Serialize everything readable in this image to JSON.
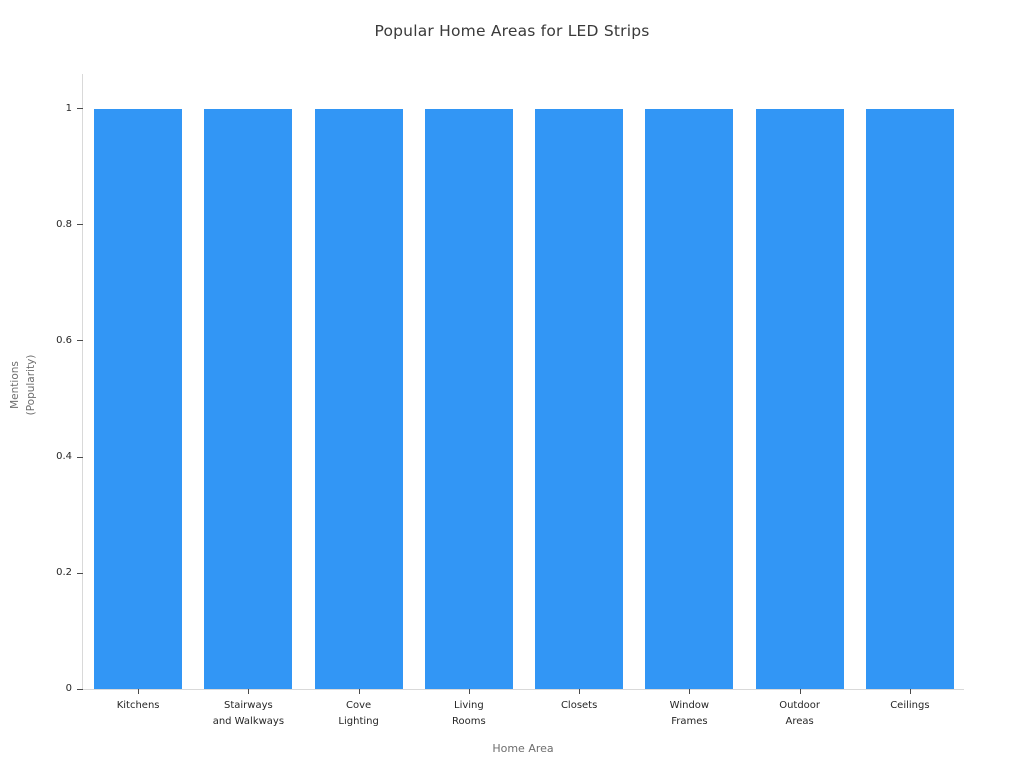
{
  "chart_data": {
    "type": "bar",
    "title": "Popular Home Areas for LED Strips",
    "xlabel": "Home Area",
    "ylabel": "Mentions\n(Popularity)",
    "categories": [
      "Kitchens",
      "Stairways\nand Walkways",
      "Cove\nLighting",
      "Living\nRooms",
      "Closets",
      "Window\nFrames",
      "Outdoor\nAreas",
      "Ceilings"
    ],
    "values": [
      1,
      1,
      1,
      1,
      1,
      1,
      1,
      1
    ],
    "yticks": [
      0,
      0.2,
      0.4,
      0.6,
      0.8,
      1
    ],
    "ytick_labels": [
      "0",
      "0.2",
      "0.4",
      "0.6",
      "0.8",
      "1"
    ],
    "ylim": [
      0,
      1.062
    ],
    "grid": false,
    "legend_position": "none",
    "bar_color": "#3296f5"
  },
  "colors": {
    "background": "#ffffff",
    "spine": "#d9d9d9",
    "tick_mark": "#4a4a4a",
    "tick_label": "#262626",
    "axis_label": "#6e6e6e",
    "title": "#3a3a3a"
  }
}
